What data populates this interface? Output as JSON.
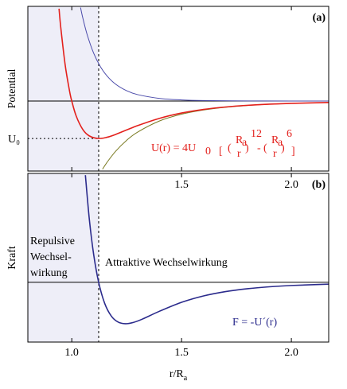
{
  "chart_data": [
    {
      "type": "line",
      "panel_label": "(a)",
      "ylabel": "Potential",
      "xlim": [
        0.8,
        2.17
      ],
      "ylim": [
        -1.87,
        2.53
      ],
      "xticks": [
        {
          "value": 1,
          "label": "1.0"
        },
        1.5,
        {
          "value": 2,
          "label": "2.0"
        }
      ],
      "yticks": [
        {
          "value": -1,
          "label": "U₀"
        }
      ],
      "reference_line": 0,
      "vline": 1.1225,
      "shade_color": "#eeeef8",
      "series": [
        {
          "color": "#4b4baa",
          "width": 1,
          "x": [
            1.04,
            1.05,
            1.07,
            1.1,
            1.13,
            1.16,
            1.2,
            1.25,
            1.3,
            1.4,
            1.5,
            1.6,
            1.8,
            2.0,
            2.17
          ],
          "values": [
            2.498,
            2.227,
            1.776,
            1.274,
            0.923,
            0.674,
            0.449,
            0.275,
            0.172,
            0.0706,
            0.0308,
            0.0142,
            0.00346,
            0.00098,
            0.00037
          ]
        },
        {
          "color": "#7a7a22",
          "width": 1,
          "x": [
            1.14,
            1.16,
            1.2,
            1.25,
            1.3,
            1.4,
            1.5,
            1.6,
            1.7,
            1.8,
            1.9,
            2.0,
            2.17
          ],
          "values": [
            -1.822,
            -1.642,
            -1.34,
            -1.049,
            -0.829,
            -0.531,
            -0.351,
            -0.238,
            -0.166,
            -0.118,
            -0.085,
            -0.0625,
            -0.0383
          ]
        },
        {
          "color": "#e3201c",
          "width": 1.6,
          "x": [
            0.942,
            0.95,
            0.97,
            0.99,
            1.0,
            1.02,
            1.05,
            1.08,
            1.122,
            1.16,
            1.2,
            1.3,
            1.4,
            1.5,
            1.6,
            1.7,
            1.8,
            1.9,
            2.0,
            2.17
          ],
          "values": [
            2.468,
            1.96,
            0.963,
            0.264,
            0,
            -0.398,
            -0.758,
            -0.932,
            -1.0,
            -0.968,
            -0.891,
            -0.657,
            -0.461,
            -0.32,
            -0.224,
            -0.159,
            -0.114,
            -0.083,
            -0.0615,
            -0.0379
          ]
        }
      ],
      "formula_color": "#e3201c",
      "formula": [
        "U(r) = 4U",
        "0",
        "[",
        "(",
        "R",
        "a",
        "r",
        ")",
        "12",
        "-",
        "(",
        "R",
        "a",
        "r",
        ")",
        "6",
        "]"
      ]
    },
    {
      "type": "line",
      "panel_label": "(b)",
      "ylabel": "Kraft",
      "xlim": [
        0.8,
        2.17
      ],
      "ylim": [
        -3.46,
        6.31
      ],
      "xticks": [
        {
          "value": 1,
          "label": "1.0"
        },
        1.5,
        {
          "value": 2,
          "label": "2.0"
        }
      ],
      "xlabel": [
        "r/R",
        "a"
      ],
      "reference_line": 0,
      "vline": 1.1225,
      "shade_color": "#eeeef8",
      "series": [
        {
          "color": "#2b2b8c",
          "width": 1.6,
          "x": [
            1.062,
            1.08,
            1.1,
            1.1225,
            1.15,
            1.18,
            1.21,
            1.244,
            1.28,
            1.32,
            1.4,
            1.5,
            1.6,
            1.7,
            1.8,
            1.9,
            2.0,
            2.17
          ],
          "values": [
            6.21,
            3.644,
            1.586,
            0,
            -1.221,
            -1.953,
            -2.293,
            -2.397,
            -2.325,
            -2.138,
            -1.672,
            -1.158,
            -0.788,
            -0.536,
            -0.369,
            -0.257,
            -0.182,
            -0.104
          ]
        }
      ],
      "repulsive_label": [
        "Repulsive",
        "Wechsel-",
        "wirkung"
      ],
      "attractive_label": "Attraktive Wechselwirkung",
      "force_label": "F = -U´(r)",
      "force_label_color": "#2b2b8c"
    }
  ]
}
